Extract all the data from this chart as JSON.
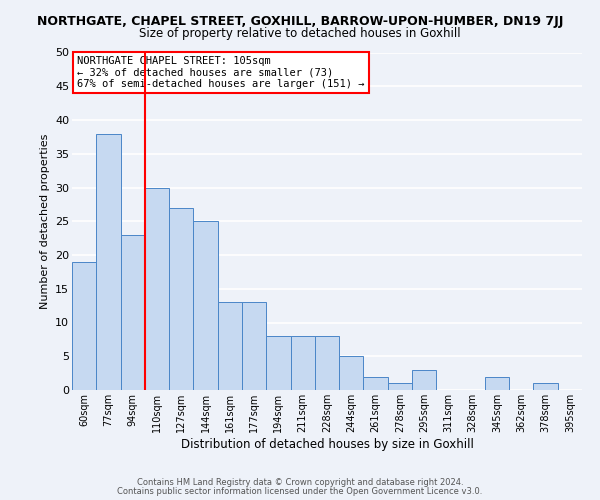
{
  "title_line1": "NORTHGATE, CHAPEL STREET, GOXHILL, BARROW-UPON-HUMBER, DN19 7JJ",
  "title_line2": "Size of property relative to detached houses in Goxhill",
  "xlabel": "Distribution of detached houses by size in Goxhill",
  "ylabel": "Number of detached properties",
  "bar_labels": [
    "60sqm",
    "77sqm",
    "94sqm",
    "110sqm",
    "127sqm",
    "144sqm",
    "161sqm",
    "177sqm",
    "194sqm",
    "211sqm",
    "228sqm",
    "244sqm",
    "261sqm",
    "278sqm",
    "295sqm",
    "311sqm",
    "328sqm",
    "345sqm",
    "362sqm",
    "378sqm",
    "395sqm"
  ],
  "bar_heights": [
    19,
    38,
    23,
    30,
    27,
    25,
    13,
    13,
    8,
    8,
    8,
    5,
    2,
    1,
    3,
    0,
    0,
    2,
    0,
    1,
    0
  ],
  "bar_color": "#c6d9f1",
  "bar_edge_color": "#4a86c8",
  "vline_color": "red",
  "ylim": [
    0,
    50
  ],
  "annotation_title": "NORTHGATE CHAPEL STREET: 105sqm",
  "annotation_line1": "← 32% of detached houses are smaller (73)",
  "annotation_line2": "67% of semi-detached houses are larger (151) →",
  "annotation_box_color": "white",
  "annotation_box_edge": "red",
  "footer_line1": "Contains HM Land Registry data © Crown copyright and database right 2024.",
  "footer_line2": "Contains public sector information licensed under the Open Government Licence v3.0.",
  "background_color": "#eef2f9",
  "grid_color": "white"
}
